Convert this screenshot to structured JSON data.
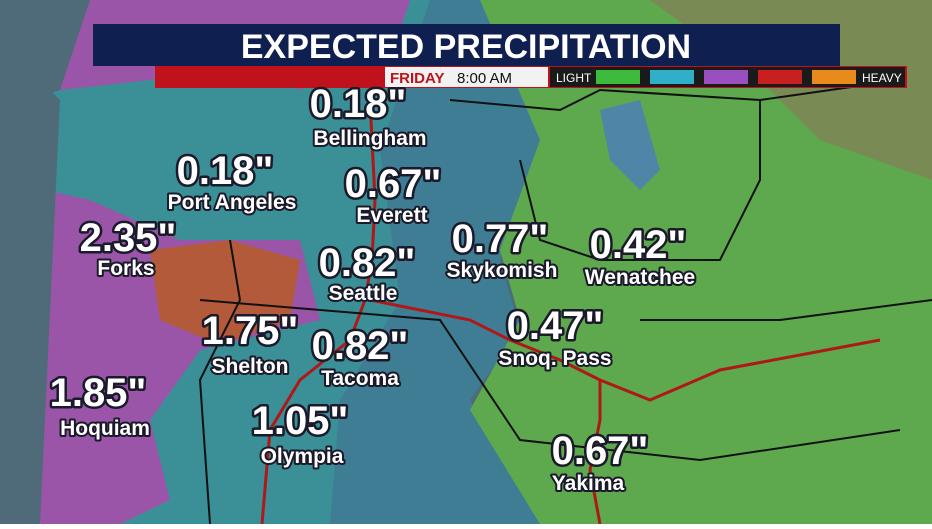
{
  "header": {
    "title": "EXPECTED PRECIPITATION",
    "day": "FRIDAY",
    "time": "8:00 AM"
  },
  "legend": {
    "low": "LIGHT",
    "high": "HEAVY"
  },
  "locations": [
    {
      "amount": "0.18\"",
      "name": "Bellingham"
    },
    {
      "amount": "0.18\"",
      "name": "Port Angeles"
    },
    {
      "amount": "0.67\"",
      "name": "Everett"
    },
    {
      "amount": "2.35\"",
      "name": "Forks"
    },
    {
      "amount": "0.82\"",
      "name": "Seattle"
    },
    {
      "amount": "0.77\"",
      "name": "Skykomish"
    },
    {
      "amount": "0.42\"",
      "name": "Wenatchee"
    },
    {
      "amount": "0.47\"",
      "name": "Snoq. Pass"
    },
    {
      "amount": "1.75\"",
      "name": "Shelton"
    },
    {
      "amount": "0.82\"",
      "name": "Tacoma"
    },
    {
      "amount": "1.85\"",
      "name": "Hoquiam"
    },
    {
      "amount": "1.05\"",
      "name": "Olympia"
    },
    {
      "amount": "0.67\"",
      "name": "Yakima"
    }
  ]
}
